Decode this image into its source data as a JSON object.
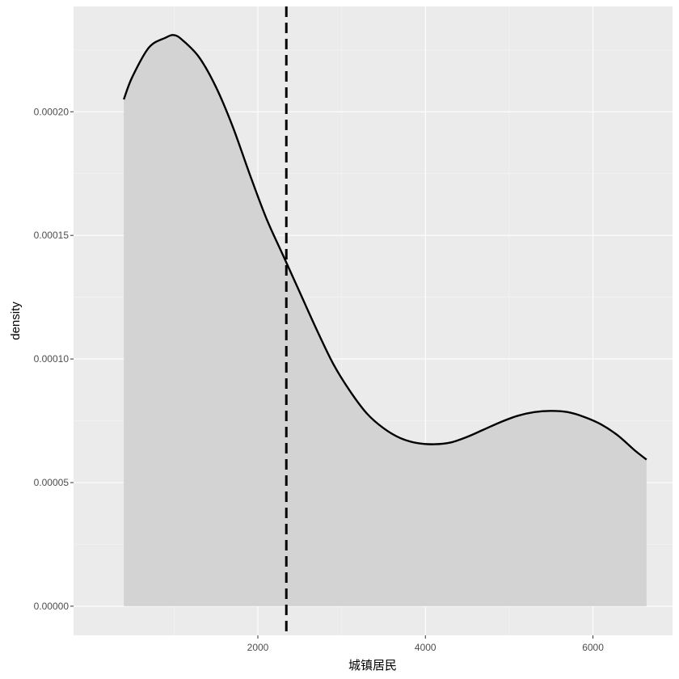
{
  "chart_data": {
    "type": "area",
    "title": "",
    "xlabel": "城镇居民",
    "ylabel": "density",
    "xlim": [
      -200,
      6950
    ],
    "ylim": [
      -1.18e-05,
      0.0002426
    ],
    "x_ticks": [
      2000,
      4000,
      6000
    ],
    "x_tick_labels": [
      "2000",
      "4000",
      "6000"
    ],
    "y_ticks": [
      0,
      5e-05,
      0.0001,
      0.00015,
      0.0002
    ],
    "y_tick_labels": [
      "0.00000",
      "0.00005",
      "0.00010",
      "0.00015",
      "0.00020"
    ],
    "mean_line": {
      "x": 2340,
      "style": "dashed",
      "color": "#000000"
    },
    "series": [
      {
        "x": [
          400,
          500,
          700,
          900,
          1000,
          1100,
          1300,
          1500,
          1700,
          1900,
          2100,
          2300,
          2500,
          2700,
          2900,
          3100,
          3300,
          3500,
          3700,
          3900,
          4100,
          4300,
          4500,
          4700,
          4900,
          5100,
          5300,
          5500,
          5700,
          5900,
          6100,
          6300,
          6500,
          6640
        ],
        "y": [
          0.000205,
          0.000214,
          0.000226,
          0.00023,
          0.000231,
          0.000229,
          0.000222,
          0.00021,
          0.000194,
          0.000175,
          0.000157,
          0.000142,
          0.000127,
          0.000112,
          9.8e-05,
          8.7e-05,
          7.8e-05,
          7.2e-05,
          6.8e-05,
          6.6e-05,
          6.55e-05,
          6.62e-05,
          6.85e-05,
          7.15e-05,
          7.45e-05,
          7.7e-05,
          7.85e-05,
          7.9e-05,
          7.85e-05,
          7.65e-05,
          7.35e-05,
          6.9e-05,
          6.3e-05,
          5.93e-05
        ]
      }
    ],
    "grid": true,
    "background": "#ebebeb",
    "fill_color": "#d3d3d3",
    "line_color": "#000000"
  }
}
